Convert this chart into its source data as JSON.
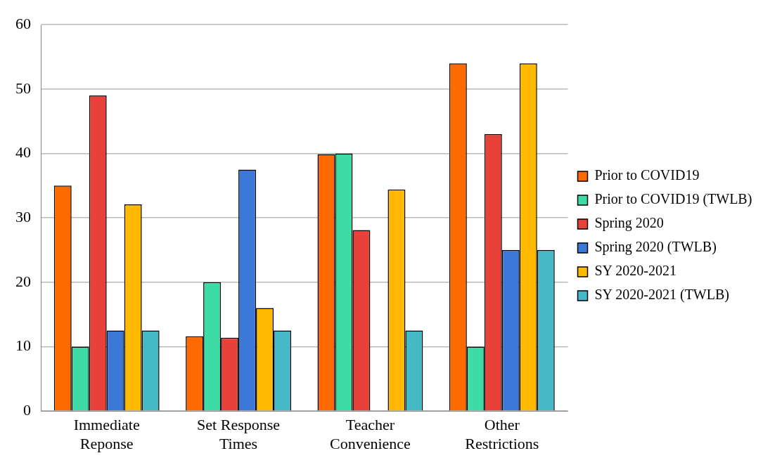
{
  "chart_data": {
    "type": "bar",
    "categories": [
      "Immediate Reponse",
      "Set Response Times",
      "Teacher Convenience",
      "Other Restrictions"
    ],
    "series": [
      {
        "name": "Prior to COVID19",
        "color": "#ff6a00",
        "values": [
          35,
          11.6,
          39.9,
          54
        ]
      },
      {
        "name": "Prior to COVID19 (TWLB)",
        "color": "#3ddba5",
        "values": [
          10,
          20,
          40,
          10
        ]
      },
      {
        "name": "Spring 2020",
        "color": "#e8413a",
        "values": [
          49,
          11.4,
          28.1,
          43
        ]
      },
      {
        "name": "Spring 2020 (TWLB)",
        "color": "#3b78d8",
        "values": [
          12.5,
          37.5,
          null,
          25
        ]
      },
      {
        "name": "SY 2020-2021",
        "color": "#ffb900",
        "values": [
          32.1,
          16,
          34.4,
          54
        ]
      },
      {
        "name": "SY 2020-2021 (TWLB)",
        "color": "#45b9c5",
        "values": [
          12.5,
          12.5,
          12.5,
          25
        ]
      }
    ],
    "ylim": [
      0,
      60
    ],
    "yticks": [
      0,
      10,
      20,
      30,
      40,
      50,
      60
    ],
    "grid": "y",
    "legend": "right"
  }
}
